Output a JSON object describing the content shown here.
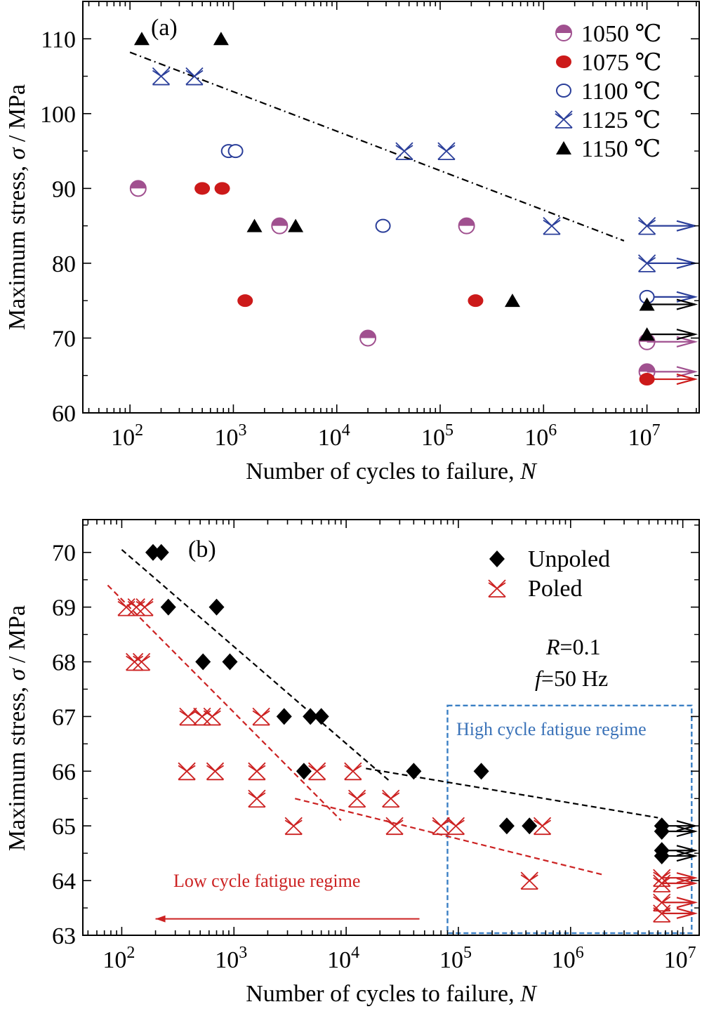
{
  "chart_data": [
    {
      "panel_label": "(a)",
      "type": "scatter",
      "xscale": "log",
      "xlim": [
        35,
        32000000
      ],
      "ylim": [
        60,
        115
      ],
      "x_tick_values": [
        100,
        1000,
        10000,
        100000,
        1000000,
        10000000
      ],
      "x_tick_labels": [
        "10^2",
        "10^3",
        "10^4",
        "10^5",
        "10^6",
        "10^7"
      ],
      "y_ticks": [
        60,
        70,
        80,
        90,
        100,
        110
      ],
      "xlabel": "Number of cycles to failure, N",
      "ylabel": "Maximum stress, σ / MPa",
      "legend_position": "top-right",
      "series": [
        {
          "name": "1050 ℃",
          "marker": "half-filled-circle",
          "color": "#a0508f",
          "points": [
            [
              120,
              90
            ],
            [
              2800,
              85
            ],
            [
              180000,
              85
            ],
            [
              20000,
              70
            ]
          ],
          "runouts": [
            [
              10000000,
              69.5
            ],
            [
              10000000,
              65.5
            ]
          ]
        },
        {
          "name": "1075 ℃",
          "marker": "filled-circle",
          "color": "#cc1a1a",
          "points": [
            [
              500,
              90
            ],
            [
              780,
              90
            ],
            [
              1300,
              75
            ],
            [
              220000,
              75
            ]
          ],
          "runouts": [
            [
              10000000,
              64.5
            ]
          ]
        },
        {
          "name": "1100 ℃",
          "marker": "open-circle",
          "color": "#2b3f9a",
          "points": [
            [
              900,
              95
            ],
            [
              1050,
              95
            ],
            [
              28000,
              85
            ]
          ],
          "runouts": [
            [
              10000000,
              75.5
            ]
          ]
        },
        {
          "name": "1125 ℃",
          "marker": "crossed-x",
          "color": "#2b3f9a",
          "points": [
            [
              200,
              105
            ],
            [
              420,
              105
            ],
            [
              45000,
              95
            ],
            [
              115000,
              95
            ],
            [
              1200000,
              85
            ]
          ],
          "runouts": [
            [
              10000000,
              85
            ],
            [
              10000000,
              80
            ]
          ]
        },
        {
          "name": "1150 ℃",
          "marker": "filled-triangle",
          "color": "#000000",
          "points": [
            [
              130,
              110
            ],
            [
              760,
              110
            ],
            [
              1600,
              85
            ],
            [
              4000,
              85
            ],
            [
              500000,
              75
            ]
          ],
          "runouts": [
            [
              10000000,
              74.5
            ],
            [
              10000000,
              70.5
            ]
          ]
        }
      ],
      "trend_lines": [
        {
          "style": "dash-dot",
          "color": "#000000",
          "from": [
            100,
            108.2
          ],
          "to": [
            6000000,
            83
          ]
        }
      ]
    },
    {
      "panel_label": "(b)",
      "type": "scatter",
      "xscale": "log",
      "xlim": [
        45,
        14000000
      ],
      "ylim": [
        63,
        70.6
      ],
      "x_tick_values": [
        100,
        1000,
        10000,
        100000,
        1000000,
        10000000
      ],
      "x_tick_labels": [
        "10^2",
        "10^3",
        "10^4",
        "10^5",
        "10^6",
        "10^7"
      ],
      "y_ticks": [
        63,
        64,
        65,
        66,
        67,
        68,
        69,
        70
      ],
      "xlabel": "Number of cycles to failure, N",
      "ylabel": "Maximum stress, σ / MPa",
      "legend_position": "top-right",
      "conditions": [
        "R=0.1",
        "f=50 Hz"
      ],
      "annotations": {
        "high_cycle": "High cycle fatigue regime",
        "low_cycle": "Low cycle fatigue regime"
      },
      "high_cycle_box": {
        "x": [
          80000,
          12000000
        ],
        "y": [
          63,
          67.2
        ]
      },
      "low_cycle_arrow": {
        "from": [
          45000,
          63.3
        ],
        "to": [
          200,
          63.3
        ]
      },
      "series": [
        {
          "name": "Unpoled",
          "marker": "filled-diamond",
          "color": "#000000",
          "points": [
            [
              190,
              70
            ],
            [
              225,
              70
            ],
            [
              260,
              69
            ],
            [
              700,
              69
            ],
            [
              530,
              68
            ],
            [
              920,
              68
            ],
            [
              2800,
              67
            ],
            [
              4800,
              67
            ],
            [
              6000,
              67
            ],
            [
              4200,
              66
            ],
            [
              40000,
              66
            ],
            [
              160000,
              66
            ],
            [
              270000,
              65
            ],
            [
              430000,
              65
            ]
          ],
          "runouts": [
            [
              6500000,
              65
            ],
            [
              6500000,
              64.9
            ],
            [
              6500000,
              64.55
            ],
            [
              6500000,
              64.45
            ]
          ]
        },
        {
          "name": "Poled",
          "marker": "crossed-x",
          "color": "#cc2222",
          "points": [
            [
              110,
              69
            ],
            [
              135,
              69
            ],
            [
              160,
              69
            ],
            [
              130,
              68
            ],
            [
              150,
              68
            ],
            [
              390,
              67
            ],
            [
              520,
              67
            ],
            [
              640,
              67
            ],
            [
              1750,
              67
            ],
            [
              380,
              66
            ],
            [
              680,
              66
            ],
            [
              1600,
              66
            ],
            [
              5500,
              66
            ],
            [
              11500,
              66
            ],
            [
              1600,
              65.5
            ],
            [
              12500,
              65.5
            ],
            [
              25000,
              65.5
            ],
            [
              3400,
              65
            ],
            [
              27000,
              65
            ],
            [
              70000,
              65
            ],
            [
              95000,
              65
            ],
            [
              560000,
              65
            ],
            [
              430000,
              64
            ]
          ],
          "runouts": [
            [
              6500000,
              64.05
            ],
            [
              6500000,
              63.95
            ],
            [
              6500000,
              63.6
            ],
            [
              6500000,
              63.4
            ]
          ]
        }
      ],
      "trend_lines": [
        {
          "style": "dashed",
          "color": "#000000",
          "from": [
            100,
            70.05
          ],
          "to": [
            25000,
            65.8
          ]
        },
        {
          "style": "dashed",
          "color": "#000000",
          "from": [
            15000,
            66.05
          ],
          "to": [
            6000000,
            65.15
          ]
        },
        {
          "style": "dashed",
          "color": "#cc2222",
          "from": [
            75,
            69.4
          ],
          "to": [
            9000,
            65.1
          ]
        },
        {
          "style": "dashed",
          "color": "#cc2222",
          "from": [
            3500,
            65.5
          ],
          "to": [
            2000000,
            64.1
          ]
        }
      ]
    }
  ]
}
